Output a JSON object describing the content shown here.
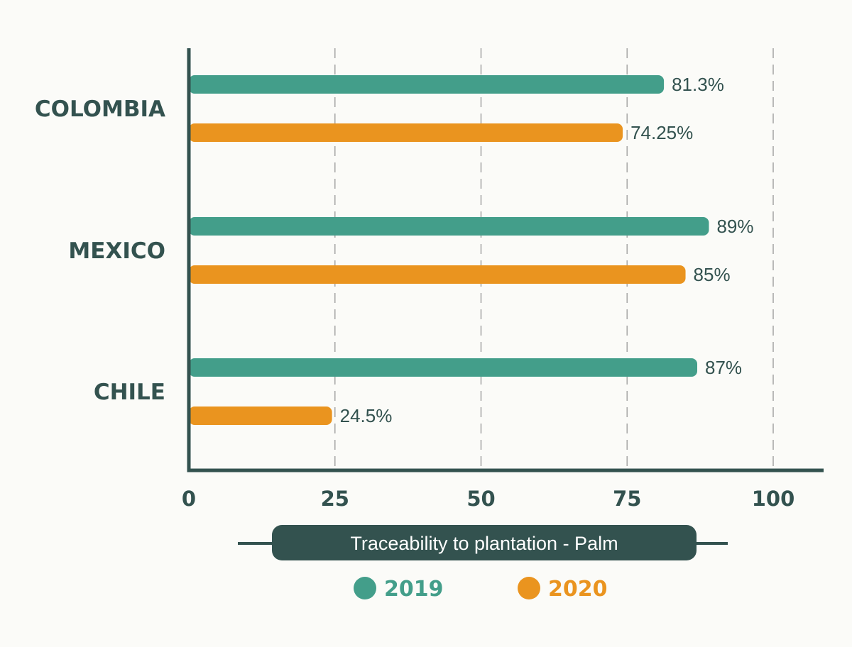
{
  "chart_data": {
    "type": "bar",
    "orientation": "horizontal",
    "categories": [
      "COLOMBIA",
      "MEXICO",
      "CHILE"
    ],
    "series": [
      {
        "name": "2019",
        "color": "#439e8a",
        "values": [
          81.3,
          89,
          87
        ],
        "labels": [
          "81.3%",
          "89%",
          "87%"
        ]
      },
      {
        "name": "2020",
        "color": "#ea941f",
        "values": [
          74.25,
          85,
          24.5
        ],
        "labels": [
          "74.25%",
          "85%",
          "24.5%"
        ]
      }
    ],
    "xlim": [
      0,
      100
    ],
    "xticks": [
      "0",
      "25",
      "50",
      "75",
      "100"
    ],
    "xlabel": "Traceability to plantation - Palm",
    "grid": "vertical dashed",
    "legend_position": "bottom-center",
    "colors": {
      "axis": "#33524f",
      "text": "#33524f",
      "grid": "#a9a9a9"
    }
  }
}
